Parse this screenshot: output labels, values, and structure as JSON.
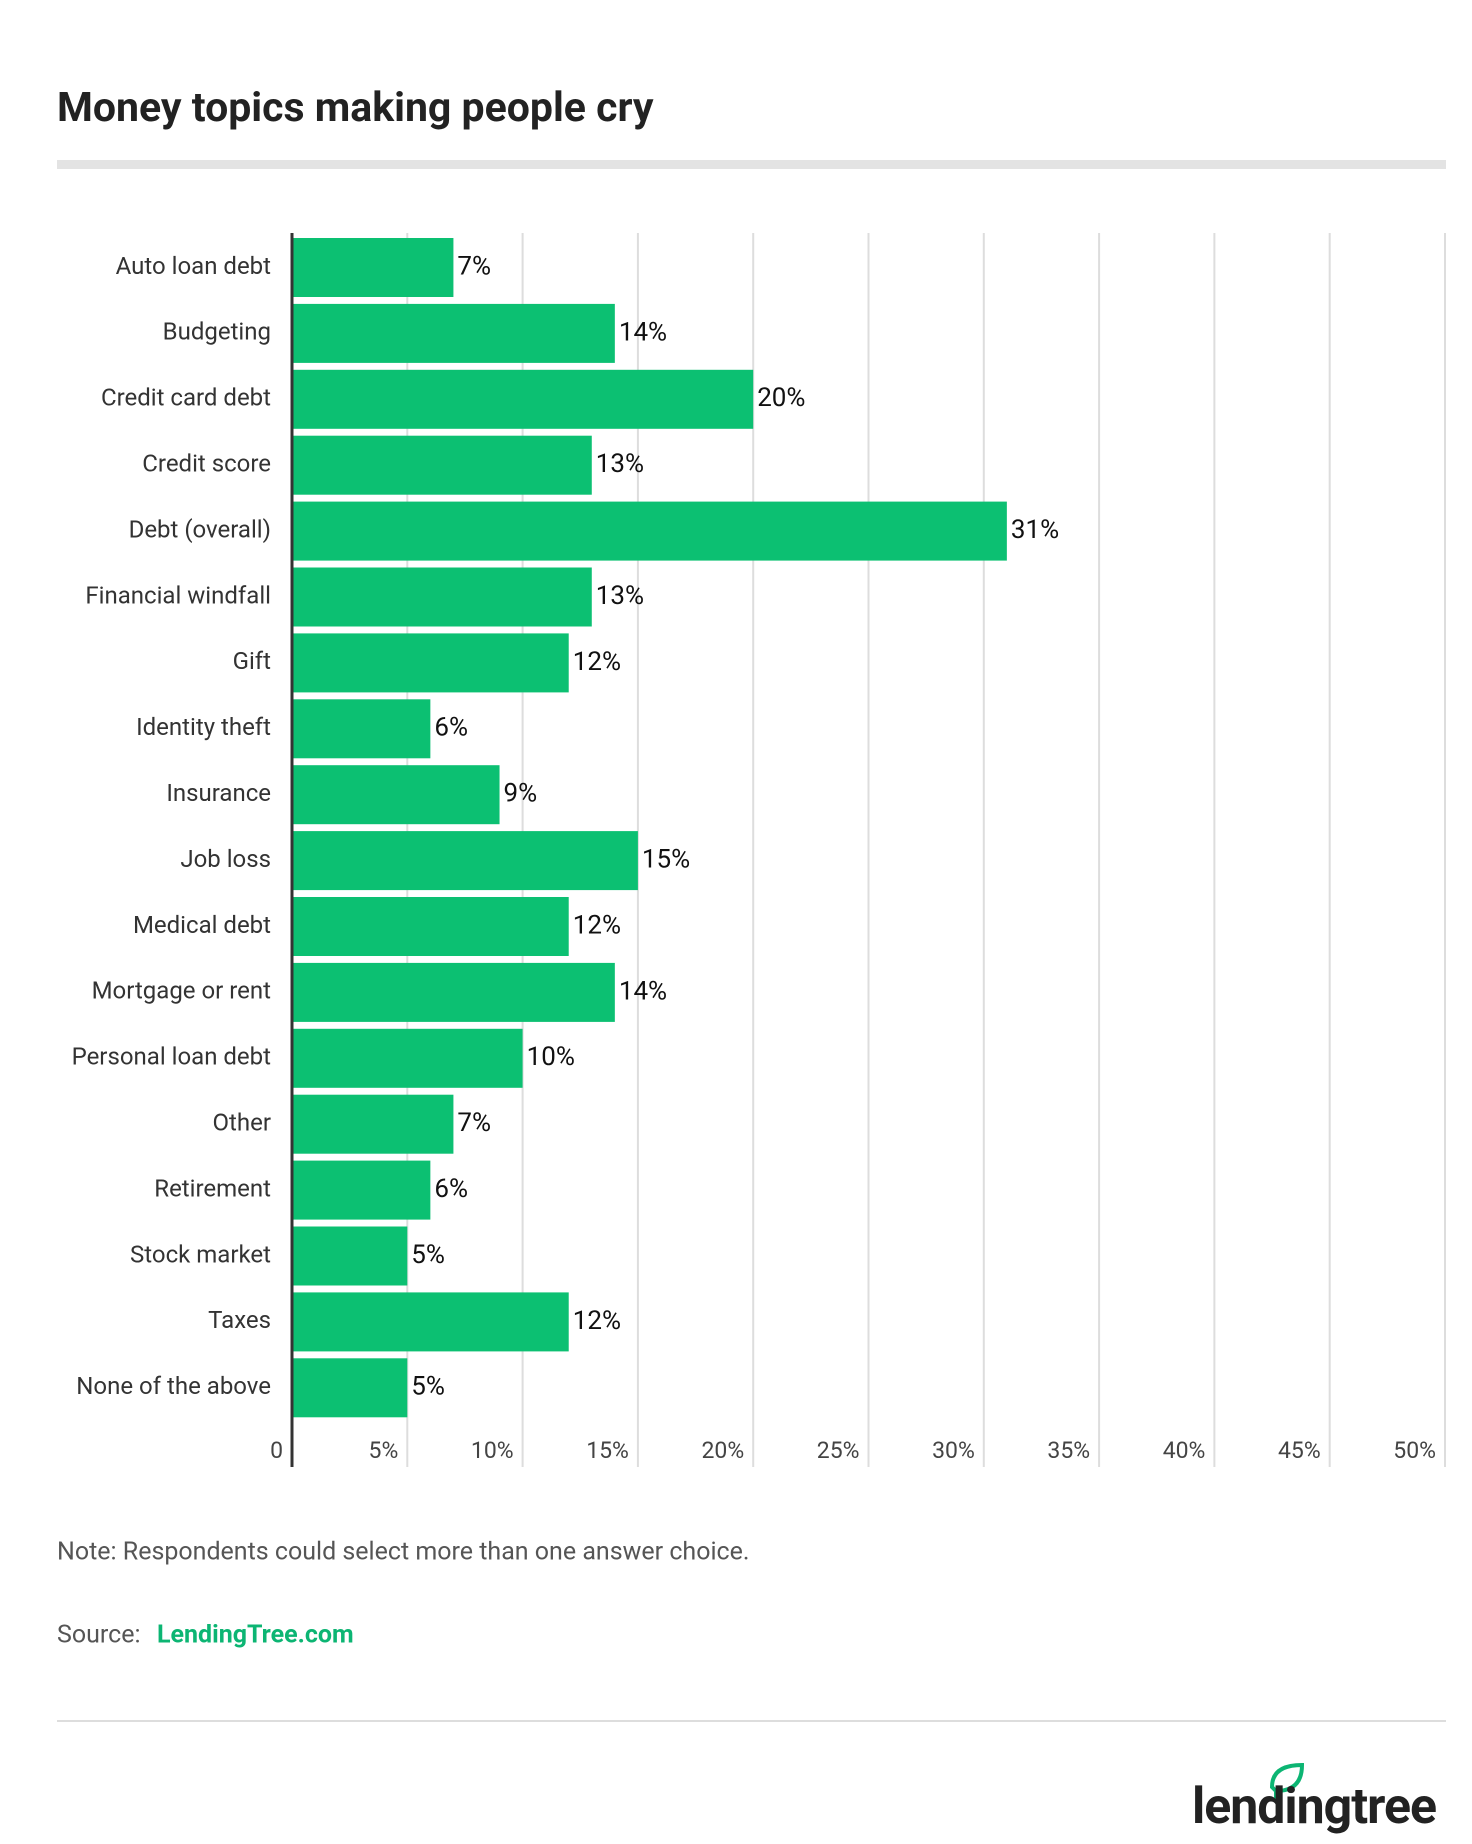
{
  "chart_data": {
    "type": "barh",
    "title": "Money topics making people cry",
    "categories": [
      "Auto loan debt",
      "Budgeting",
      "Credit card debt",
      "Credit score",
      "Debt (overall)",
      "Financial windfall",
      "Gift",
      "Identity theft",
      "Insurance",
      "Job loss",
      "Medical debt",
      "Mortgage or rent",
      "Personal loan debt",
      "Other",
      "Retirement",
      "Stock market",
      "Taxes",
      "None of the above"
    ],
    "values": [
      7,
      14,
      20,
      13,
      31,
      13,
      12,
      6,
      9,
      15,
      12,
      14,
      10,
      7,
      6,
      5,
      12,
      5
    ],
    "value_labels": [
      "7%",
      "14%",
      "20%",
      "13%",
      "31%",
      "13%",
      "12%",
      "6%",
      "9%",
      "15%",
      "12%",
      "14%",
      "10%",
      "7%",
      "6%",
      "5%",
      "12%",
      "5%"
    ],
    "color": "#0cc072",
    "xlim": [
      0,
      50
    ],
    "xticks": [
      0,
      {
        "value": 5,
        "label": "5%"
      },
      {
        "value": 10,
        "label": "10%"
      },
      {
        "value": 15,
        "label": "15%"
      },
      {
        "value": 20,
        "label": "20%"
      },
      {
        "value": 25,
        "label": "25%"
      },
      {
        "value": 30,
        "label": "30%"
      },
      {
        "value": 35,
        "label": "35%"
      },
      {
        "value": 40,
        "label": "40%"
      },
      {
        "value": 45,
        "label": "45%"
      },
      {
        "value": 50,
        "label": "50%"
      }
    ],
    "grid": true,
    "note": "Note: Respondents could select more than one answer choice.",
    "source_label": "Source:",
    "source": "LendingTree.com",
    "logo": "lendingtree"
  }
}
